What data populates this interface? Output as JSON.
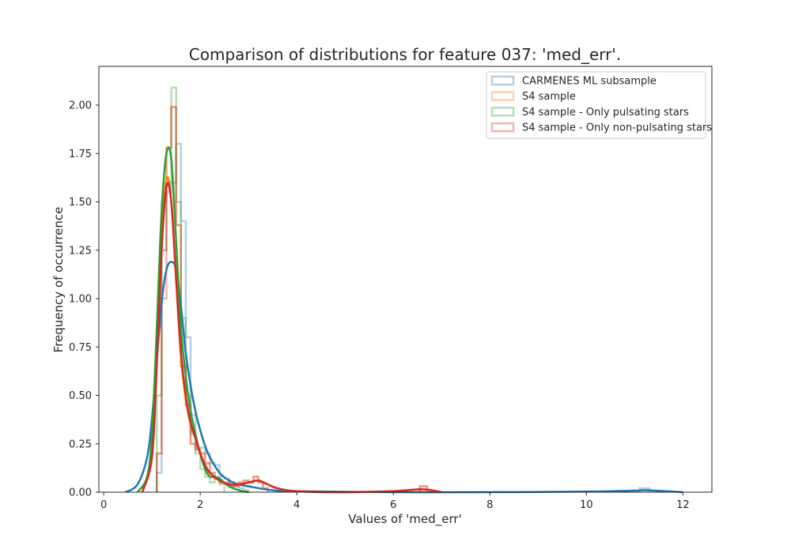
{
  "chart_data": {
    "type": "histogram_kde",
    "title": "Comparison of distributions for feature 037: 'med_err'.",
    "xlabel": "Values of 'med_err'",
    "ylabel": "Frequency of occurrence",
    "xlim": [
      -0.1,
      12.6
    ],
    "ylim": [
      0,
      2.2
    ],
    "xticks": [
      0,
      2,
      4,
      6,
      8,
      10,
      12
    ],
    "xtick_labels": [
      "0",
      "2",
      "4",
      "6",
      "8",
      "10",
      "12"
    ],
    "yticks": [
      0,
      0.25,
      0.5,
      0.75,
      1.0,
      1.25,
      1.5,
      1.75,
      2.0
    ],
    "ytick_labels": [
      "0.00",
      "0.25",
      "0.50",
      "0.75",
      "1.00",
      "1.25",
      "1.50",
      "1.75",
      "2.00"
    ],
    "grid": false,
    "legend_position": "top-right",
    "series": [
      {
        "name": "CARMENES ML subsample",
        "color": "#1f77b4",
        "hist_edges": [
          1.1,
          1.2,
          1.3,
          1.4,
          1.5,
          1.6,
          1.7,
          1.8,
          1.9,
          2.0,
          2.1,
          2.2,
          2.3,
          2.4,
          2.5,
          2.6,
          2.7,
          2.8,
          2.9,
          3.0
        ],
        "hist_heights": [
          0.1,
          1.5,
          1.55,
          1.6,
          1.8,
          1.4,
          0.8,
          0.4,
          0.23,
          0.23,
          0.2,
          0.15,
          0.14,
          0.08,
          0.07,
          0.05,
          0.03,
          0.02,
          0.01
        ],
        "extra_bins": [
          {
            "x0": 11.1,
            "x1": 11.3,
            "h": 0.02
          }
        ],
        "kde_x": [
          0.45,
          0.7,
          0.9,
          1.0,
          1.1,
          1.2,
          1.3,
          1.4,
          1.5,
          1.6,
          1.7,
          1.8,
          1.9,
          2.0,
          2.1,
          2.2,
          2.4,
          2.6,
          2.8,
          3.0,
          3.5,
          4.0,
          6.0,
          8.0,
          10.0,
          11.0,
          11.2,
          11.5,
          12.0
        ],
        "kde_y": [
          0.0,
          0.04,
          0.18,
          0.38,
          0.68,
          0.98,
          1.15,
          1.19,
          1.15,
          0.96,
          0.72,
          0.55,
          0.42,
          0.32,
          0.24,
          0.18,
          0.1,
          0.06,
          0.04,
          0.03,
          0.01,
          0.005,
          0.0,
          0.0,
          0.003,
          0.008,
          0.01,
          0.007,
          0.0
        ]
      },
      {
        "name": "S4 sample",
        "color": "#ff7f0e",
        "hist_edges": [
          1.1,
          1.2,
          1.3,
          1.4,
          1.5,
          1.6,
          1.7,
          1.8,
          1.9,
          2.0,
          2.1,
          2.2,
          2.3,
          2.4,
          2.5,
          2.6,
          2.7,
          2.8,
          2.9,
          3.0,
          3.1,
          3.2,
          3.3,
          3.4
        ],
        "hist_heights": [
          0.2,
          1.25,
          1.78,
          1.99,
          1.38,
          0.65,
          0.45,
          0.25,
          0.22,
          0.2,
          0.15,
          0.1,
          0.07,
          0.05,
          0.05,
          0.03,
          0.03,
          0.05,
          0.06,
          0.05,
          0.08,
          0.05,
          0.02
        ],
        "extra_bins": [
          {
            "x0": 6.55,
            "x1": 6.7,
            "h": 0.03
          }
        ],
        "kde_x": [
          0.8,
          1.0,
          1.1,
          1.2,
          1.3,
          1.4,
          1.5,
          1.6,
          1.7,
          1.8,
          1.9,
          2.0,
          2.1,
          2.2,
          2.4,
          2.6,
          2.8,
          3.0,
          3.2,
          3.4,
          3.6,
          4.0,
          5.0,
          6.0,
          6.6,
          7.0
        ],
        "kde_y": [
          0.0,
          0.2,
          0.75,
          1.3,
          1.62,
          1.5,
          1.1,
          0.7,
          0.48,
          0.35,
          0.28,
          0.2,
          0.14,
          0.1,
          0.06,
          0.04,
          0.04,
          0.05,
          0.06,
          0.04,
          0.02,
          0.005,
          0.0,
          0.005,
          0.015,
          0.0
        ]
      },
      {
        "name": "S4 sample - Only pulsating stars",
        "color": "#2ca02c",
        "hist_edges": [
          1.1,
          1.2,
          1.3,
          1.4,
          1.5,
          1.6,
          1.7,
          1.8,
          1.9,
          2.0,
          2.1,
          2.2,
          2.3,
          2.4,
          2.5
        ],
        "hist_heights": [
          0.5,
          1.25,
          1.6,
          2.09,
          1.5,
          0.9,
          0.5,
          0.3,
          0.2,
          0.12,
          0.08,
          0.05,
          0.07,
          0.04
        ],
        "extra_bins": [],
        "kde_x": [
          0.7,
          0.9,
          1.0,
          1.1,
          1.2,
          1.3,
          1.4,
          1.5,
          1.6,
          1.7,
          1.8,
          1.9,
          2.0,
          2.1,
          2.2,
          2.3,
          2.4,
          2.6,
          2.8,
          3.0
        ],
        "kde_y": [
          0.0,
          0.08,
          0.3,
          0.85,
          1.45,
          1.75,
          1.72,
          1.3,
          0.85,
          0.6,
          0.42,
          0.3,
          0.2,
          0.12,
          0.08,
          0.08,
          0.07,
          0.03,
          0.01,
          0.0
        ]
      },
      {
        "name": "S4 sample - Only non-pulsating stars",
        "color": "#d62728",
        "hist_edges": [
          1.1,
          1.2,
          1.3,
          1.4,
          1.5,
          1.6,
          1.7,
          1.8,
          1.9,
          2.0,
          2.1,
          2.2,
          2.3,
          2.4,
          2.5,
          2.6,
          2.7,
          2.8,
          2.9,
          3.0,
          3.1,
          3.2,
          3.3,
          3.4
        ],
        "hist_heights": [
          0.2,
          1.0,
          1.78,
          1.99,
          1.38,
          0.65,
          0.45,
          0.25,
          0.22,
          0.2,
          0.15,
          0.1,
          0.07,
          0.05,
          0.05,
          0.03,
          0.03,
          0.05,
          0.06,
          0.05,
          0.08,
          0.05,
          0.02
        ],
        "extra_bins": [
          {
            "x0": 6.55,
            "x1": 6.7,
            "h": 0.03
          }
        ],
        "kde_x": [
          0.8,
          1.0,
          1.1,
          1.2,
          1.3,
          1.4,
          1.5,
          1.6,
          1.7,
          1.8,
          1.9,
          2.0,
          2.1,
          2.2,
          2.4,
          2.6,
          2.8,
          3.0,
          3.2,
          3.4,
          3.6,
          4.0,
          5.0,
          6.0,
          6.6,
          7.0
        ],
        "kde_y": [
          0.0,
          0.18,
          0.65,
          1.25,
          1.58,
          1.5,
          1.1,
          0.72,
          0.5,
          0.36,
          0.28,
          0.2,
          0.14,
          0.1,
          0.06,
          0.04,
          0.04,
          0.05,
          0.06,
          0.04,
          0.02,
          0.005,
          0.0,
          0.005,
          0.015,
          0.0
        ]
      }
    ]
  }
}
